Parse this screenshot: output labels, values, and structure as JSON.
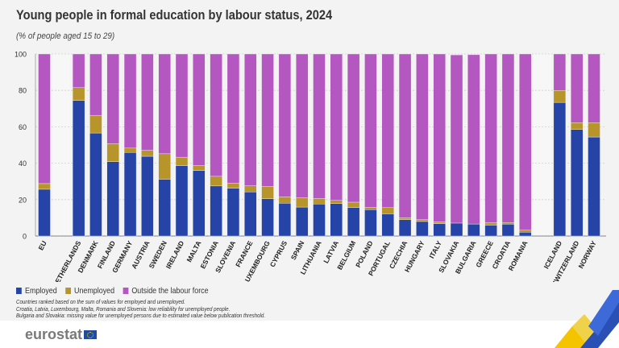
{
  "title": "Young people in formal education by labour status, 2024",
  "subtitle": "(% of people aged 15 to 29)",
  "legend": [
    "Employed",
    "Unemployed",
    "Outside the labour force"
  ],
  "notes": [
    "Countries ranked based on the sum of values for employed and unemployed.",
    "Croatia, Latvia, Luxembourg, Malta, Romania and Slovenia: low reliability for unemployed people.",
    "Bulgaria and Slovakia: missing value for unemployed persons due to estimated value below publication threshold."
  ],
  "logo": "eurostat",
  "colors": {
    "employed": "#2644a8",
    "unemployed": "#b8952a",
    "outside": "#b557c0",
    "background": "#f3f3f3"
  },
  "chart_data": {
    "type": "bar",
    "stacked": true,
    "ylim": [
      0,
      100
    ],
    "yticks": [
      0,
      20,
      40,
      60,
      80,
      100
    ],
    "grid": true,
    "legend_position": "bottom-left",
    "groups": [
      [
        "EU"
      ],
      [
        "Netherlands",
        "Denmark",
        "Finland",
        "Germany",
        "Austria",
        "Sweden",
        "Ireland",
        "Malta",
        "Estonia",
        "Slovenia",
        "France",
        "Luxembourg",
        "Cyprus",
        "Spain",
        "Lithuania",
        "Latvia",
        "Belgium",
        "Poland",
        "Portugal",
        "Czechia",
        "Hungary",
        "Italy",
        "Slovakia",
        "Bulgaria",
        "Greece",
        "Croatia",
        "Romania"
      ],
      [
        "Iceland",
        "Switzerland",
        "Norway"
      ]
    ],
    "categories": [
      "EU",
      "Netherlands",
      "Denmark",
      "Finland",
      "Germany",
      "Austria",
      "Sweden",
      "Ireland",
      "Malta",
      "Estonia",
      "Slovenia",
      "France",
      "Luxembourg",
      "Cyprus",
      "Spain",
      "Lithuania",
      "Latvia",
      "Belgium",
      "Poland",
      "Portugal",
      "Czechia",
      "Hungary",
      "Italy",
      "Slovakia",
      "Bulgaria",
      "Greece",
      "Croatia",
      "Romania",
      "Iceland",
      "Switzerland",
      "Norway"
    ],
    "series": [
      {
        "name": "Employed",
        "values": [
          25.7,
          74.5,
          56.6,
          40.8,
          45.9,
          43.8,
          31.2,
          38.7,
          36.0,
          27.5,
          26.3,
          24.2,
          20.5,
          18.0,
          15.9,
          17.6,
          17.8,
          15.6,
          14.5,
          12.2,
          9.0,
          8.0,
          6.8,
          7.1,
          6.6,
          6.0,
          6.5,
          2.1,
          73.4,
          58.5,
          54.4
        ]
      },
      {
        "name": "Unemployed",
        "values": [
          3.1,
          7.0,
          9.7,
          9.9,
          2.4,
          3.3,
          14.0,
          4.6,
          2.8,
          5.3,
          2.7,
          3.4,
          6.7,
          3.5,
          5.1,
          3.0,
          1.8,
          3.0,
          1.3,
          3.4,
          1.0,
          1.0,
          1.0,
          null,
          null,
          1.3,
          0.9,
          1.1,
          6.6,
          3.8,
          7.9
        ]
      },
      {
        "name": "Outside the labour force",
        "values": [
          71.2,
          18.5,
          33.7,
          49.3,
          51.7,
          52.9,
          54.8,
          56.7,
          61.2,
          67.2,
          71.0,
          72.4,
          72.8,
          78.5,
          79.0,
          79.4,
          80.4,
          81.4,
          84.2,
          84.4,
          90.0,
          91.0,
          92.2,
          92.4,
          93.0,
          92.7,
          92.6,
          96.8,
          20.0,
          37.7,
          37.7
        ]
      }
    ]
  }
}
